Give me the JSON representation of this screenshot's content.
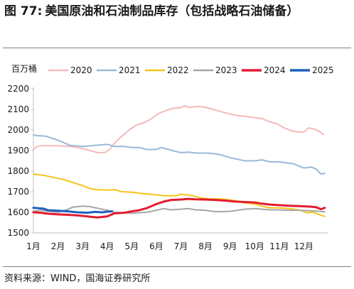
{
  "figure": {
    "number": "图 77:",
    "title": "美国原油和石油制品库存（包括战略石油储备）",
    "source": "资料来源：WIND，国海证券研究所"
  },
  "chart_data": {
    "type": "line",
    "ylabel": "百万桶",
    "ylim": [
      1500,
      2200
    ],
    "yticks": [
      1500,
      1600,
      1700,
      1800,
      1900,
      2000,
      2100,
      2200
    ],
    "categories": [
      "1月",
      "2月",
      "3月",
      "4月",
      "5月",
      "6月",
      "7月",
      "8月",
      "9月",
      "10月",
      "11月",
      "12月"
    ],
    "legend_position": "top",
    "grid": false,
    "series": [
      {
        "name": "2020",
        "color": "#F4B9B9",
        "values": [
          [
            1,
            1905
          ],
          [
            1.15,
            1920
          ],
          [
            1.3,
            1923
          ],
          [
            2,
            1923
          ],
          [
            2.5,
            1920
          ],
          [
            3,
            1910
          ],
          [
            3.3,
            1900
          ],
          [
            3.6,
            1890
          ],
          [
            3.9,
            1890
          ],
          [
            4.1,
            1905
          ],
          [
            4.3,
            1935
          ],
          [
            4.6,
            1970
          ],
          [
            4.9,
            2000
          ],
          [
            5.2,
            2025
          ],
          [
            5.5,
            2035
          ],
          [
            5.8,
            2055
          ],
          [
            6.1,
            2080
          ],
          [
            6.4,
            2095
          ],
          [
            6.7,
            2105
          ],
          [
            7,
            2108
          ],
          [
            7.15,
            2118
          ],
          [
            7.3,
            2110
          ],
          [
            7.5,
            2112
          ],
          [
            7.7,
            2115
          ],
          [
            8,
            2110
          ],
          [
            8.3,
            2100
          ],
          [
            8.6,
            2090
          ],
          [
            8.9,
            2080
          ],
          [
            9.3,
            2070
          ],
          [
            9.7,
            2065
          ],
          [
            10,
            2060
          ],
          [
            10.3,
            2055
          ],
          [
            10.6,
            2040
          ],
          [
            10.9,
            2030
          ],
          [
            11.2,
            2010
          ],
          [
            11.5,
            1995
          ],
          [
            11.8,
            1990
          ],
          [
            12,
            1990
          ],
          [
            12.2,
            2010
          ],
          [
            12.4,
            2005
          ],
          [
            12.6,
            1995
          ],
          [
            12.8,
            1978
          ]
        ]
      },
      {
        "name": "2021",
        "color": "#9BB8D8",
        "values": [
          [
            1,
            1975
          ],
          [
            1.2,
            1972
          ],
          [
            1.5,
            1970
          ],
          [
            2,
            1950
          ],
          [
            2.5,
            1925
          ],
          [
            3,
            1920
          ],
          [
            3.5,
            1925
          ],
          [
            4,
            1930
          ],
          [
            4.3,
            1920
          ],
          [
            4.7,
            1920
          ],
          [
            5,
            1915
          ],
          [
            5.3,
            1915
          ],
          [
            5.6,
            1905
          ],
          [
            6,
            1905
          ],
          [
            6.2,
            1915
          ],
          [
            6.5,
            1905
          ],
          [
            6.8,
            1895
          ],
          [
            7,
            1890
          ],
          [
            7.3,
            1892
          ],
          [
            7.6,
            1888
          ],
          [
            8,
            1888
          ],
          [
            8.3,
            1885
          ],
          [
            8.6,
            1880
          ],
          [
            9,
            1865
          ],
          [
            9.3,
            1858
          ],
          [
            9.6,
            1850
          ],
          [
            10,
            1850
          ],
          [
            10.3,
            1855
          ],
          [
            10.6,
            1845
          ],
          [
            11,
            1845
          ],
          [
            11.3,
            1840
          ],
          [
            11.6,
            1835
          ],
          [
            11.8,
            1825
          ],
          [
            12,
            1815
          ],
          [
            12.3,
            1820
          ],
          [
            12.5,
            1810
          ],
          [
            12.7,
            1785
          ],
          [
            12.85,
            1790
          ]
        ]
      },
      {
        "name": "2022",
        "color": "#F5C518",
        "values": [
          [
            1,
            1785
          ],
          [
            1.4,
            1780
          ],
          [
            1.8,
            1770
          ],
          [
            2.2,
            1760
          ],
          [
            2.6,
            1745
          ],
          [
            3,
            1730
          ],
          [
            3.3,
            1715
          ],
          [
            3.6,
            1710
          ],
          [
            4,
            1708
          ],
          [
            4.3,
            1710
          ],
          [
            4.6,
            1700
          ],
          [
            5,
            1698
          ],
          [
            5.5,
            1690
          ],
          [
            6,
            1685
          ],
          [
            6.4,
            1680
          ],
          [
            6.8,
            1680
          ],
          [
            7,
            1688
          ],
          [
            7.2,
            1685
          ],
          [
            7.5,
            1680
          ],
          [
            7.8,
            1670
          ],
          [
            8.2,
            1665
          ],
          [
            8.6,
            1665
          ],
          [
            9,
            1660
          ],
          [
            9.3,
            1655
          ],
          [
            9.6,
            1645
          ],
          [
            10,
            1640
          ],
          [
            10.3,
            1630
          ],
          [
            10.6,
            1622
          ],
          [
            11,
            1622
          ],
          [
            11.4,
            1618
          ],
          [
            11.8,
            1612
          ],
          [
            12.1,
            1598
          ],
          [
            12.4,
            1600
          ],
          [
            12.6,
            1590
          ],
          [
            12.85,
            1580
          ]
        ]
      },
      {
        "name": "2023",
        "color": "#A6A6A6",
        "values": [
          [
            1,
            1605
          ],
          [
            1.3,
            1610
          ],
          [
            1.6,
            1605
          ],
          [
            2,
            1600
          ],
          [
            2.3,
            1610
          ],
          [
            2.6,
            1625
          ],
          [
            3,
            1630
          ],
          [
            3.3,
            1628
          ],
          [
            3.6,
            1620
          ],
          [
            4,
            1610
          ],
          [
            4.3,
            1600
          ],
          [
            4.7,
            1598
          ],
          [
            5,
            1595
          ],
          [
            5.3,
            1598
          ],
          [
            5.6,
            1600
          ],
          [
            6,
            1610
          ],
          [
            6.3,
            1618
          ],
          [
            6.6,
            1612
          ],
          [
            7,
            1615
          ],
          [
            7.3,
            1618
          ],
          [
            7.6,
            1612
          ],
          [
            8,
            1610
          ],
          [
            8.3,
            1605
          ],
          [
            8.6,
            1603
          ],
          [
            9,
            1605
          ],
          [
            9.3,
            1610
          ],
          [
            9.6,
            1615
          ],
          [
            10,
            1618
          ],
          [
            10.3,
            1615
          ],
          [
            10.6,
            1612
          ],
          [
            11,
            1612
          ],
          [
            11.4,
            1610
          ],
          [
            11.8,
            1610
          ],
          [
            12.2,
            1608
          ],
          [
            12.6,
            1605
          ],
          [
            12.85,
            1602
          ]
        ]
      },
      {
        "name": "2024",
        "color": "#E31B30",
        "values": [
          [
            1,
            1600
          ],
          [
            1.3,
            1598
          ],
          [
            1.6,
            1593
          ],
          [
            2,
            1590
          ],
          [
            2.4,
            1588
          ],
          [
            2.8,
            1585
          ],
          [
            3.2,
            1580
          ],
          [
            3.6,
            1575
          ],
          [
            4,
            1580
          ],
          [
            4.3,
            1595
          ],
          [
            4.7,
            1598
          ],
          [
            5,
            1605
          ],
          [
            5.3,
            1610
          ],
          [
            5.6,
            1620
          ],
          [
            6,
            1640
          ],
          [
            6.3,
            1652
          ],
          [
            6.6,
            1660
          ],
          [
            7,
            1662
          ],
          [
            7.3,
            1665
          ],
          [
            7.6,
            1663
          ],
          [
            8,
            1662
          ],
          [
            8.4,
            1660
          ],
          [
            8.8,
            1657
          ],
          [
            9.2,
            1652
          ],
          [
            9.6,
            1650
          ],
          [
            10,
            1648
          ],
          [
            10.3,
            1642
          ],
          [
            10.6,
            1638
          ],
          [
            11,
            1635
          ],
          [
            11.4,
            1632
          ],
          [
            11.8,
            1630
          ],
          [
            12.2,
            1628
          ],
          [
            12.5,
            1625
          ],
          [
            12.7,
            1615
          ],
          [
            12.85,
            1622
          ]
        ]
      },
      {
        "name": "2025",
        "color": "#1F5FBF",
        "values": [
          [
            1,
            1622
          ],
          [
            1.2,
            1620
          ],
          [
            1.4,
            1618
          ],
          [
            1.6,
            1610
          ],
          [
            2,
            1608
          ],
          [
            2.4,
            1605
          ],
          [
            2.8,
            1600
          ],
          [
            3.2,
            1598
          ],
          [
            3.5,
            1602
          ],
          [
            3.8,
            1600
          ],
          [
            4,
            1603
          ],
          [
            4.2,
            1605
          ]
        ]
      }
    ]
  }
}
